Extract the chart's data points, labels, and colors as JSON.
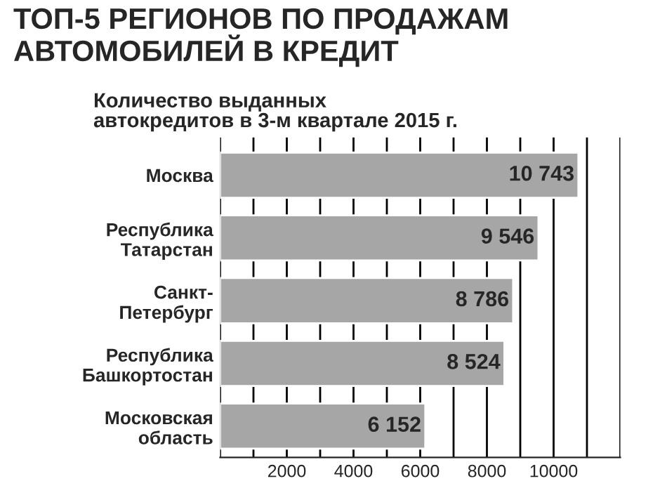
{
  "chart_data": {
    "type": "bar",
    "orientation": "horizontal",
    "title": "ТОП-5 РЕГИОНОВ ПО ПРОДАЖАМ\nАВТОМОБИЛЕЙ В КРЕДИТ",
    "subtitle": "Количество выданных\nавтокредитов в 3-м квартале 2015 г.",
    "categories": [
      "Москва",
      "Республика\nТатарстан",
      "Санкт-\nПетербург",
      "Республика\nБашкортостан",
      "Московская\nобласть"
    ],
    "values": [
      10743,
      9546,
      8786,
      8524,
      6152
    ],
    "value_labels": [
      "10 743",
      "9 546",
      "8 786",
      "8 524",
      "6 152"
    ],
    "color": "#a6a6a6",
    "xlim": [
      0,
      12000
    ],
    "xticks": [
      {
        "value": 0,
        "label": null
      },
      {
        "value": 1000,
        "label": null
      },
      2000,
      {
        "value": 3000,
        "label": null
      },
      4000,
      {
        "value": 5000,
        "label": null
      },
      6000,
      {
        "value": 7000,
        "label": null
      },
      8000,
      {
        "value": 9000,
        "label": null
      },
      10000,
      {
        "value": 11000,
        "label": null
      },
      {
        "value": 12000,
        "label": null
      }
    ],
    "grid": "x"
  }
}
